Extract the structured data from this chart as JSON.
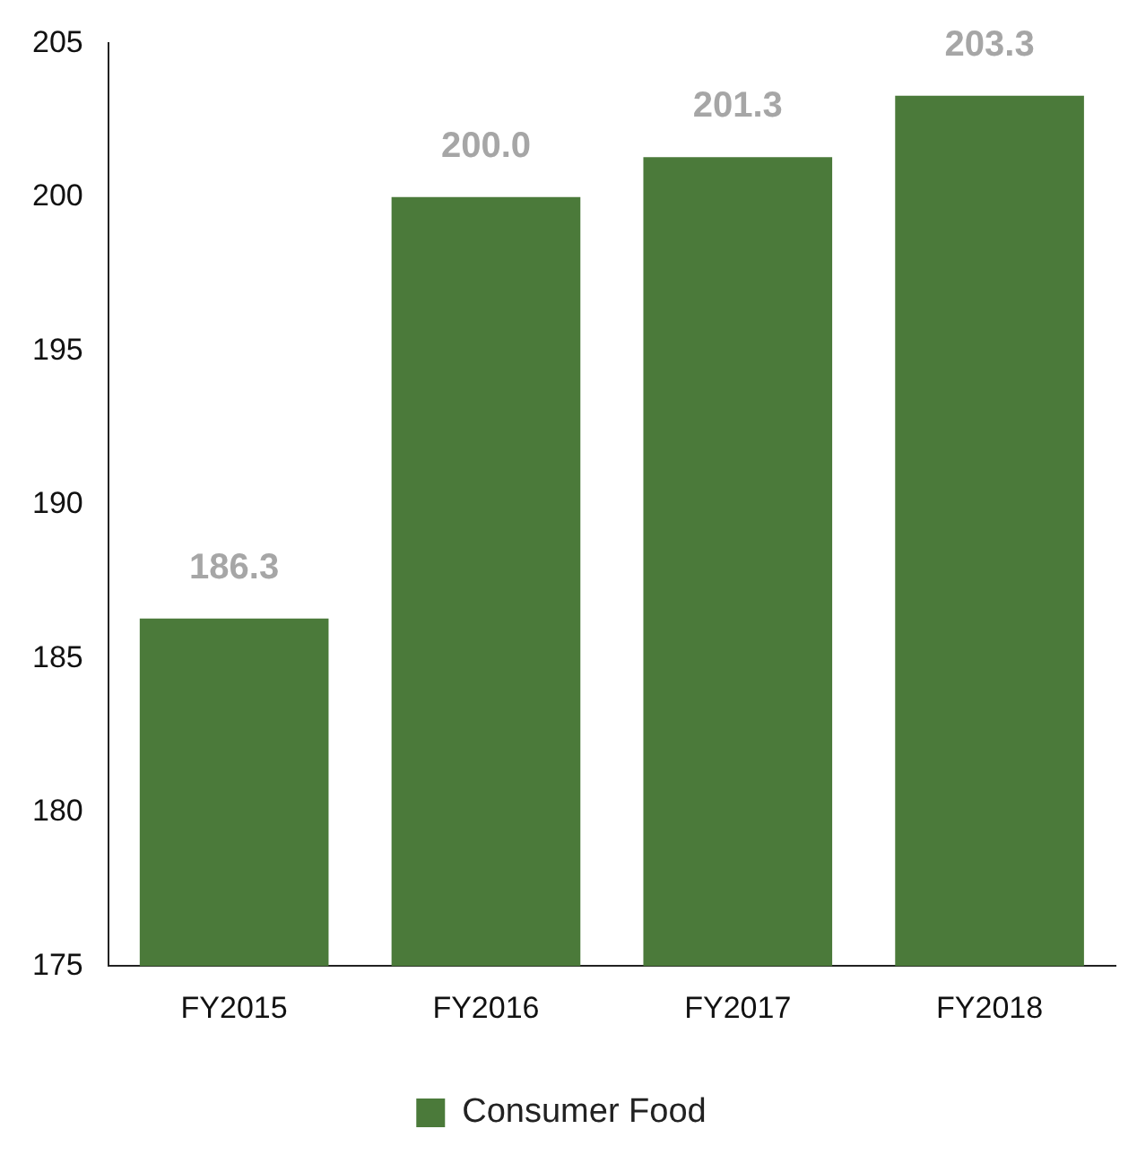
{
  "chart_data": {
    "type": "bar",
    "categories": [
      "FY2015",
      "FY2016",
      "FY2017",
      "FY2018"
    ],
    "series": [
      {
        "name": "Consumer Food",
        "color": "#4b7a3a",
        "values": [
          186.3,
          200.0,
          201.3,
          203.3
        ],
        "value_labels": [
          "186.3",
          "200.0",
          "201.3",
          "203.3"
        ]
      }
    ],
    "ylim": [
      175,
      205
    ],
    "yticks": [
      175,
      180,
      185,
      190,
      195,
      200,
      205
    ],
    "grid": false,
    "legend": "bottom"
  }
}
